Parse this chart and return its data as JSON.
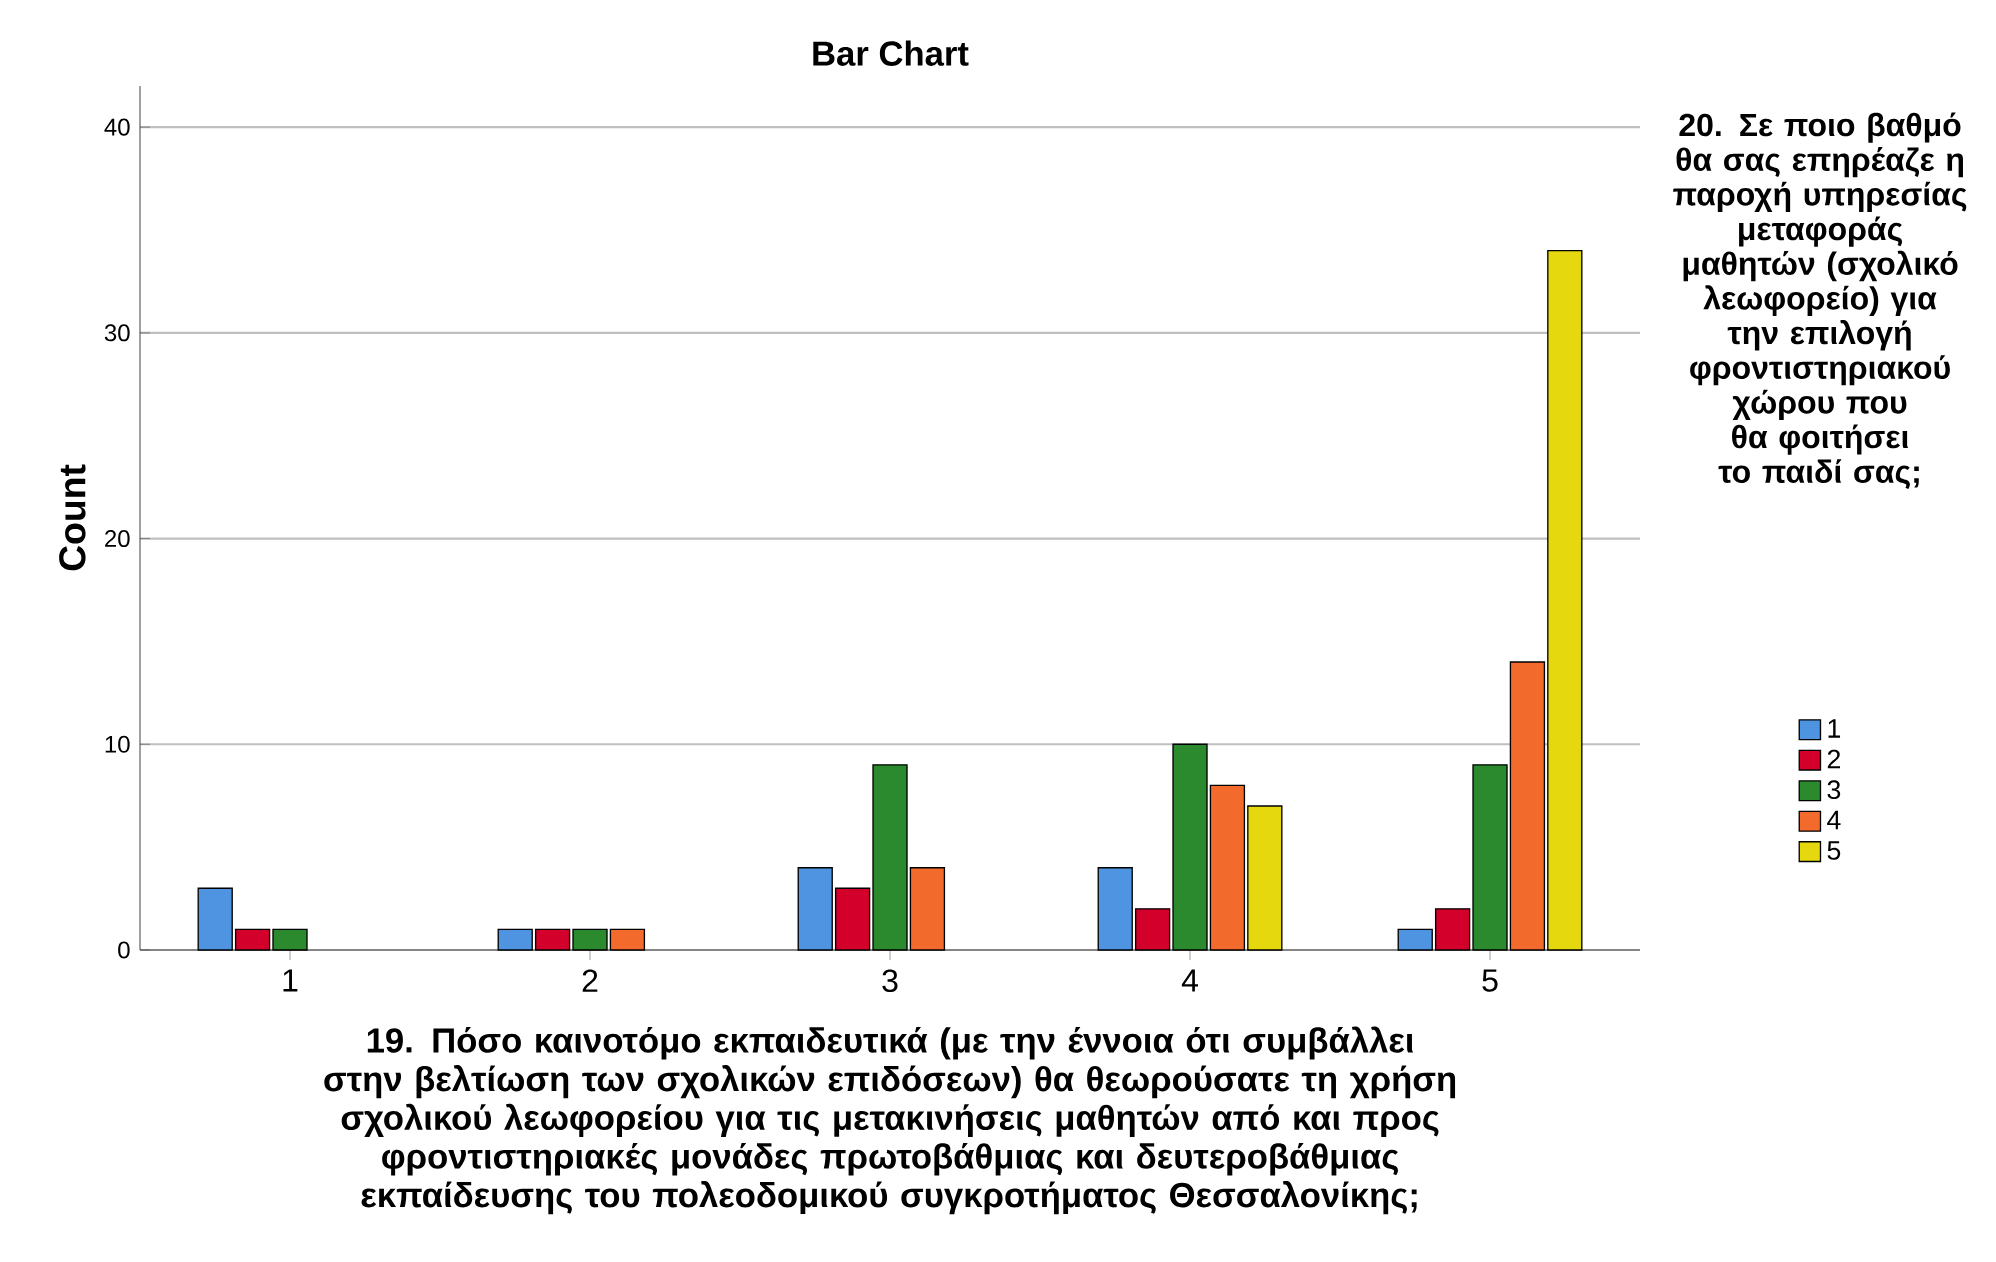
{
  "chart_data": {
    "type": "bar",
    "title": "Bar Chart",
    "xlabel": "19. Πόσο καινοτόμο εκπαιδευτικά (με την έννοια ότι συμβάλλει στην βελτίωση των σχολικών επιδόσεων) θα θεωρούσατε τη χρήση σχολικού λεωφορείου για τις μετακινήσεις μαθητών από και προς φροντιστηριακές μονάδες πρωτοβάθμιας και δευτεροβάθμιας εκπαίδευσης του πολεοδομικού συγκροτήματος Θεσσαλονίκης;",
    "ylabel": "Count",
    "legend_title": "20. Σε ποιο βαθμό θα σας επηρέαζε η παροχή υπηρεσίας μεταφοράς μαθητών (σχολικό λεωφορείο) για την επιλογή φροντιστηριακού χώρου που θα φοιτήσει το παιδί σας;",
    "categories": [
      "1",
      "2",
      "3",
      "4",
      "5"
    ],
    "series": [
      {
        "name": "1",
        "color": "#4f94e0",
        "values": [
          3,
          1,
          4,
          4,
          1
        ]
      },
      {
        "name": "2",
        "color": "#d2002b",
        "values": [
          1,
          1,
          3,
          2,
          2
        ]
      },
      {
        "name": "3",
        "color": "#2b8a2e",
        "values": [
          1,
          1,
          9,
          10,
          9
        ]
      },
      {
        "name": "4",
        "color": "#f26b2c",
        "values": [
          null,
          1,
          4,
          8,
          14
        ]
      },
      {
        "name": "5",
        "color": "#e6d80f",
        "values": [
          null,
          null,
          null,
          7,
          34
        ]
      }
    ],
    "ylim": [
      0,
      42
    ],
    "yticks": [
      0,
      10,
      20,
      30,
      40
    ],
    "grid": "y",
    "legend": "right"
  }
}
